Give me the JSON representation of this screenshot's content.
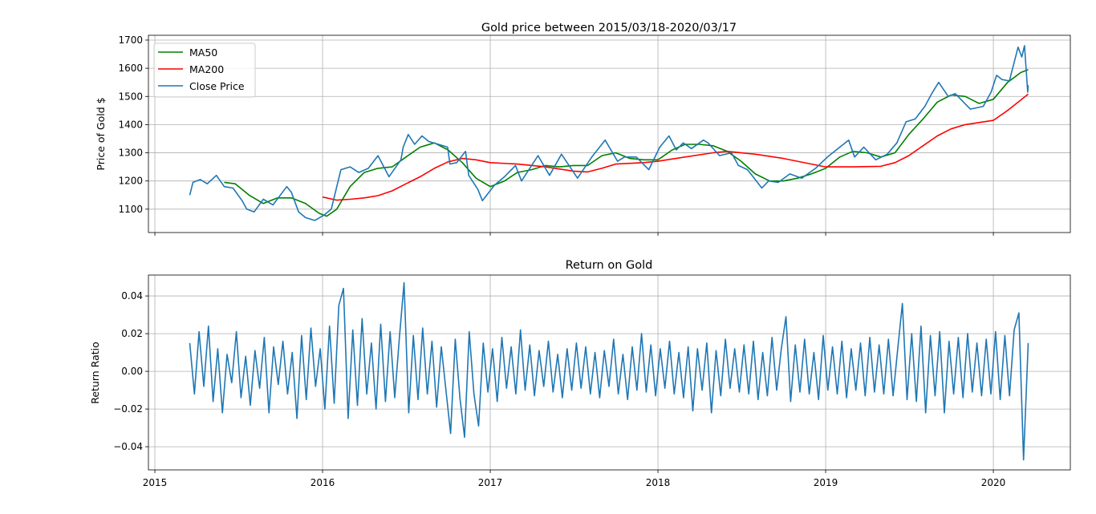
{
  "chart_data": [
    {
      "type": "line",
      "title": "Gold price between 2015/03/18-2020/03/17",
      "xlabel": "",
      "ylabel": "Price of Gold $",
      "xlim": [
        "2014-12-18",
        "2020-06-17"
      ],
      "ylim": [
        1017,
        1717
      ],
      "xticks": [
        "2015",
        "2016",
        "2017",
        "2018",
        "2019",
        "2020"
      ],
      "yticks": [
        1100,
        1200,
        1300,
        1400,
        1500,
        1600,
        1700
      ],
      "grid": true,
      "legend": "upper-left",
      "series": [
        {
          "name": "MA50",
          "color": "#008000",
          "x": [
            "2015-06-01",
            "2015-06-25",
            "2015-07-25",
            "2015-08-25",
            "2015-09-25",
            "2015-10-25",
            "2015-11-25",
            "2015-12-25",
            "2016-01-10",
            "2016-02-01",
            "2016-03-01",
            "2016-04-01",
            "2016-05-01",
            "2016-06-01",
            "2016-07-01",
            "2016-08-01",
            "2016-09-01",
            "2016-10-01",
            "2016-11-01",
            "2016-12-01",
            "2017-01-01",
            "2017-02-01",
            "2017-03-01",
            "2017-04-01",
            "2017-05-01",
            "2017-06-01",
            "2017-07-01",
            "2017-08-01",
            "2017-09-01",
            "2017-10-01",
            "2017-11-01",
            "2017-12-01",
            "2018-01-01",
            "2018-02-01",
            "2018-03-01",
            "2018-04-01",
            "2018-05-01",
            "2018-06-01",
            "2018-07-01",
            "2018-08-01",
            "2018-09-01",
            "2018-10-01",
            "2018-11-01",
            "2018-12-01",
            "2019-01-01",
            "2019-02-01",
            "2019-03-01",
            "2019-04-01",
            "2019-05-01",
            "2019-06-01",
            "2019-07-01",
            "2019-08-01",
            "2019-09-01",
            "2019-10-01",
            "2019-11-01",
            "2019-12-01",
            "2020-01-01",
            "2020-02-01",
            "2020-03-01",
            "2020-03-17"
          ],
          "y": [
            1195,
            1190,
            1150,
            1120,
            1140,
            1140,
            1120,
            1085,
            1075,
            1100,
            1180,
            1230,
            1245,
            1250,
            1285,
            1320,
            1335,
            1310,
            1265,
            1210,
            1180,
            1200,
            1230,
            1240,
            1255,
            1250,
            1255,
            1255,
            1290,
            1300,
            1280,
            1275,
            1275,
            1310,
            1330,
            1330,
            1325,
            1305,
            1270,
            1225,
            1200,
            1200,
            1210,
            1225,
            1245,
            1285,
            1305,
            1300,
            1285,
            1300,
            1365,
            1420,
            1480,
            1505,
            1500,
            1475,
            1490,
            1550,
            1585,
            1595
          ]
        },
        {
          "name": "MA200",
          "color": "#ff0000",
          "x": [
            "2016-01-01",
            "2016-02-01",
            "2016-03-01",
            "2016-04-01",
            "2016-05-01",
            "2016-06-01",
            "2016-07-01",
            "2016-08-01",
            "2016-09-01",
            "2016-10-01",
            "2016-11-01",
            "2016-12-01",
            "2017-01-01",
            "2017-03-01",
            "2017-05-01",
            "2017-07-01",
            "2017-08-01",
            "2017-09-01",
            "2017-10-01",
            "2017-12-01",
            "2018-01-01",
            "2018-03-01",
            "2018-05-01",
            "2018-06-01",
            "2018-08-01",
            "2018-10-01",
            "2018-12-01",
            "2019-01-01",
            "2019-03-01",
            "2019-05-01",
            "2019-06-01",
            "2019-07-01",
            "2019-08-01",
            "2019-09-01",
            "2019-10-01",
            "2019-11-01",
            "2020-01-01",
            "2020-02-01",
            "2020-03-17"
          ],
          "y": [
            1143,
            1132,
            1135,
            1140,
            1148,
            1165,
            1190,
            1215,
            1245,
            1268,
            1280,
            1275,
            1265,
            1260,
            1250,
            1235,
            1232,
            1245,
            1260,
            1265,
            1270,
            1285,
            1300,
            1305,
            1295,
            1280,
            1260,
            1250,
            1250,
            1252,
            1265,
            1290,
            1325,
            1360,
            1385,
            1400,
            1415,
            1450,
            1508
          ]
        },
        {
          "name": "Close Price",
          "color": "#1f77b4",
          "x": [
            "2015-03-18",
            "2015-03-25",
            "2015-04-10",
            "2015-04-25",
            "2015-05-15",
            "2015-06-01",
            "2015-06-20",
            "2015-07-10",
            "2015-07-20",
            "2015-08-05",
            "2015-08-25",
            "2015-09-15",
            "2015-10-15",
            "2015-10-25",
            "2015-11-10",
            "2015-11-25",
            "2015-12-15",
            "2016-01-05",
            "2016-01-20",
            "2016-02-10",
            "2016-03-01",
            "2016-03-20",
            "2016-04-10",
            "2016-05-01",
            "2016-05-25",
            "2016-06-20",
            "2016-06-25",
            "2016-07-06",
            "2016-07-20",
            "2016-08-05",
            "2016-08-20",
            "2016-09-10",
            "2016-09-30",
            "2016-10-05",
            "2016-10-20",
            "2016-11-08",
            "2016-11-15",
            "2016-12-05",
            "2016-12-15",
            "2017-01-10",
            "2017-02-01",
            "2017-02-25",
            "2017-03-10",
            "2017-04-15",
            "2017-05-10",
            "2017-06-05",
            "2017-07-10",
            "2017-08-10",
            "2017-09-08",
            "2017-10-05",
            "2017-10-20",
            "2017-11-15",
            "2017-12-12",
            "2018-01-05",
            "2018-01-25",
            "2018-02-10",
            "2018-02-25",
            "2018-03-15",
            "2018-04-10",
            "2018-04-20",
            "2018-05-15",
            "2018-06-10",
            "2018-06-25",
            "2018-07-15",
            "2018-08-15",
            "2018-08-30",
            "2018-09-20",
            "2018-10-15",
            "2018-11-10",
            "2018-12-10",
            "2019-01-05",
            "2019-02-20",
            "2019-03-05",
            "2019-03-25",
            "2019-04-20",
            "2019-05-15",
            "2019-06-05",
            "2019-06-25",
            "2019-07-15",
            "2019-08-05",
            "2019-08-20",
            "2019-09-04",
            "2019-09-25",
            "2019-10-10",
            "2019-11-12",
            "2019-12-10",
            "2019-12-27",
            "2020-01-08",
            "2020-01-20",
            "2020-02-05",
            "2020-02-24",
            "2020-03-03",
            "2020-03-09",
            "2020-03-16",
            "2020-03-17"
          ],
          "y": [
            1150,
            1195,
            1205,
            1190,
            1220,
            1180,
            1175,
            1130,
            1100,
            1090,
            1135,
            1115,
            1180,
            1160,
            1090,
            1070,
            1060,
            1080,
            1100,
            1240,
            1250,
            1230,
            1245,
            1290,
            1215,
            1275,
            1320,
            1365,
            1330,
            1360,
            1340,
            1330,
            1320,
            1260,
            1265,
            1305,
            1220,
            1170,
            1130,
            1185,
            1215,
            1255,
            1200,
            1290,
            1220,
            1295,
            1210,
            1285,
            1345,
            1270,
            1285,
            1285,
            1240,
            1320,
            1360,
            1310,
            1335,
            1315,
            1345,
            1335,
            1290,
            1300,
            1255,
            1240,
            1175,
            1200,
            1195,
            1225,
            1210,
            1245,
            1285,
            1345,
            1285,
            1320,
            1275,
            1295,
            1335,
            1410,
            1420,
            1465,
            1510,
            1550,
            1500,
            1510,
            1455,
            1465,
            1515,
            1575,
            1560,
            1555,
            1675,
            1640,
            1680,
            1515,
            1540
          ]
        }
      ]
    },
    {
      "type": "line",
      "title": "Return on Gold",
      "xlabel": "",
      "ylabel": "Return Ratio",
      "xlim": [
        "2014-12-18",
        "2020-06-17"
      ],
      "ylim": [
        -0.0523,
        0.0511
      ],
      "xticks": [
        "2015",
        "2016",
        "2017",
        "2018",
        "2019",
        "2020"
      ],
      "yticks": [
        "0.04",
        "0.02",
        "0.00",
        "−0.02",
        "−0.04"
      ],
      "ytick_values": [
        0.04,
        0.02,
        0,
        -0.02,
        -0.04
      ],
      "grid": true,
      "series": [
        {
          "color": "#1f77b4",
          "x_range": [
            "2015-03-18",
            "2020-03-17"
          ],
          "values": [
            0.015,
            -0.012,
            0.021,
            -0.008,
            0.024,
            -0.016,
            0.012,
            -0.022,
            0.009,
            -0.006,
            0.021,
            -0.014,
            0.008,
            -0.018,
            0.011,
            -0.009,
            0.018,
            -0.022,
            0.013,
            -0.007,
            0.016,
            -0.012,
            0.01,
            -0.025,
            0.019,
            -0.015,
            0.023,
            -0.008,
            0.012,
            -0.02,
            0.024,
            -0.017,
            0.035,
            0.044,
            -0.025,
            0.022,
            -0.018,
            0.028,
            -0.012,
            0.015,
            -0.02,
            0.025,
            -0.016,
            0.021,
            -0.014,
            0.018,
            0.047,
            -0.022,
            0.019,
            -0.015,
            0.023,
            -0.012,
            0.016,
            -0.019,
            0.013,
            -0.01,
            -0.033,
            0.017,
            -0.014,
            -0.035,
            0.021,
            -0.012,
            -0.029,
            0.015,
            -0.011,
            0.012,
            -0.016,
            0.018,
            -0.009,
            0.013,
            -0.012,
            0.022,
            -0.01,
            0.014,
            -0.013,
            0.011,
            -0.008,
            0.016,
            -0.011,
            0.009,
            -0.014,
            0.012,
            -0.01,
            0.015,
            -0.009,
            0.013,
            -0.012,
            0.01,
            -0.014,
            0.011,
            -0.008,
            0.017,
            -0.012,
            0.009,
            -0.015,
            0.013,
            -0.01,
            0.02,
            -0.011,
            0.014,
            -0.013,
            0.012,
            -0.009,
            0.016,
            -0.012,
            0.01,
            -0.014,
            0.013,
            -0.021,
            0.012,
            -0.01,
            0.015,
            -0.022,
            0.011,
            -0.013,
            0.017,
            -0.009,
            0.012,
            -0.011,
            0.014,
            -0.012,
            0.016,
            -0.015,
            0.01,
            -0.013,
            0.018,
            -0.01,
            0.012,
            0.029,
            -0.016,
            0.014,
            -0.011,
            0.017,
            -0.012,
            0.01,
            -0.015,
            0.019,
            -0.01,
            0.013,
            -0.012,
            0.016,
            -0.014,
            0.012,
            -0.01,
            0.015,
            -0.013,
            0.018,
            -0.011,
            0.014,
            -0.012,
            0.017,
            -0.013,
            0.012,
            0.036,
            -0.015,
            0.02,
            -0.016,
            0.024,
            -0.022,
            0.019,
            -0.013,
            0.021,
            -0.022,
            0.016,
            -0.012,
            0.018,
            -0.014,
            0.02,
            -0.011,
            0.015,
            -0.013,
            0.017,
            -0.012,
            0.021,
            -0.015,
            0.019,
            -0.013,
            0.022,
            0.031,
            -0.047,
            0.015
          ]
        }
      ]
    }
  ]
}
